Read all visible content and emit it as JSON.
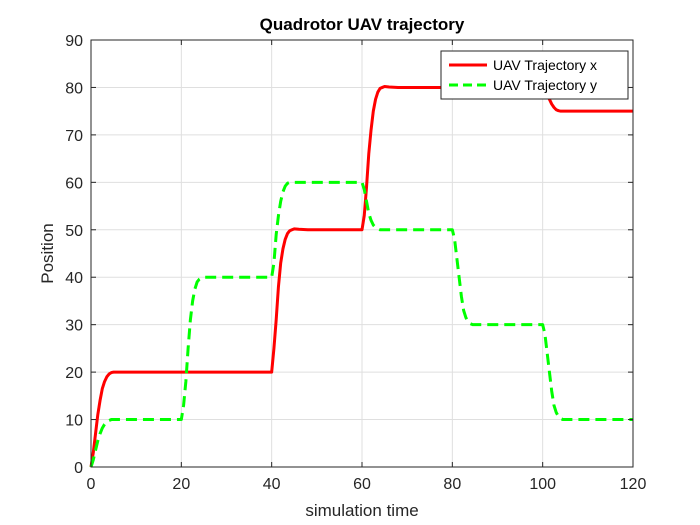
{
  "chart_data": {
    "type": "line",
    "title": "Quadrotor UAV trajectory",
    "xlabel": "simulation time",
    "ylabel": "Position",
    "xlim": [
      0,
      120
    ],
    "ylim": [
      0,
      90
    ],
    "xticks": [
      0,
      20,
      40,
      60,
      80,
      100,
      120
    ],
    "yticks": [
      0,
      10,
      20,
      30,
      40,
      50,
      60,
      70,
      80,
      90
    ],
    "xtick_labels": [
      "0",
      "20",
      "40",
      "60",
      "80",
      "100",
      "120"
    ],
    "ytick_labels": [
      "0",
      "10",
      "20",
      "30",
      "40",
      "50",
      "60",
      "70",
      "80",
      "90"
    ],
    "grid": true,
    "legend": {
      "position": "top-right"
    },
    "series": [
      {
        "name": "UAV Trajectory x",
        "color": "#ff0000",
        "style": "solid",
        "x": [
          0,
          0.5,
          1,
          1.5,
          2,
          2.5,
          3,
          3.5,
          4,
          4.5,
          5,
          6,
          8,
          40,
          40.5,
          41,
          41.5,
          42,
          42.5,
          43,
          43.5,
          44,
          44.5,
          45,
          46,
          48,
          60,
          60.5,
          61,
          61.5,
          62,
          62.5,
          63,
          63.5,
          64,
          64.5,
          65,
          66,
          68,
          100,
          100.5,
          101,
          101.5,
          102,
          102.5,
          103,
          103.5,
          104,
          104.5,
          105,
          106,
          120
        ],
        "y": [
          0,
          3,
          7,
          11,
          14,
          16.5,
          18,
          19,
          19.6,
          19.9,
          20,
          20,
          20,
          20,
          25,
          31,
          38,
          43,
          46,
          48,
          49.2,
          49.8,
          50,
          50.2,
          50.1,
          50,
          50,
          53,
          59,
          66,
          71,
          75,
          77.5,
          79,
          79.8,
          80,
          80.2,
          80.1,
          80,
          80,
          79.5,
          78.5,
          77.5,
          76.5,
          75.8,
          75.3,
          75.1,
          75,
          75,
          75,
          75,
          75
        ]
      },
      {
        "name": "UAV Trajectory y",
        "color": "#00ff00",
        "style": "dashed",
        "x": [
          0,
          0.5,
          1,
          1.5,
          2,
          2.5,
          3,
          3.5,
          4,
          4.5,
          5,
          6,
          8,
          20,
          20.5,
          21,
          21.5,
          22,
          22.5,
          23,
          23.5,
          24,
          24.5,
          25,
          26,
          28,
          40,
          40.5,
          41,
          41.5,
          42,
          42.5,
          43,
          43.5,
          44,
          44.5,
          45,
          46,
          48,
          60,
          60.5,
          61,
          61.5,
          62,
          62.5,
          63,
          63.5,
          64,
          64.5,
          65,
          66,
          68,
          80,
          80.5,
          81,
          81.5,
          82,
          82.5,
          83,
          83.5,
          84,
          84.5,
          85,
          86,
          88,
          100,
          100.5,
          101,
          101.5,
          102,
          102.5,
          103,
          103.5,
          104,
          104.5,
          105,
          106,
          120
        ],
        "y": [
          0,
          1.5,
          3.5,
          5.5,
          7,
          8.2,
          9,
          9.5,
          9.8,
          10,
          10,
          10,
          10,
          10,
          13,
          18,
          25,
          31,
          35,
          37.5,
          39,
          39.6,
          39.9,
          40,
          40,
          40,
          40,
          43,
          49,
          53,
          56,
          58,
          59.2,
          59.8,
          60,
          60,
          60,
          60,
          60,
          60,
          58.5,
          56,
          53.5,
          52,
          51,
          50.5,
          50.2,
          50,
          50,
          50,
          50,
          50,
          50,
          48,
          44,
          40,
          36,
          33,
          31.5,
          30.6,
          30.2,
          30,
          30,
          30,
          30,
          30,
          28,
          24,
          20,
          16,
          13,
          11.5,
          10.6,
          10.2,
          10,
          10,
          10,
          10
        ]
      }
    ]
  }
}
